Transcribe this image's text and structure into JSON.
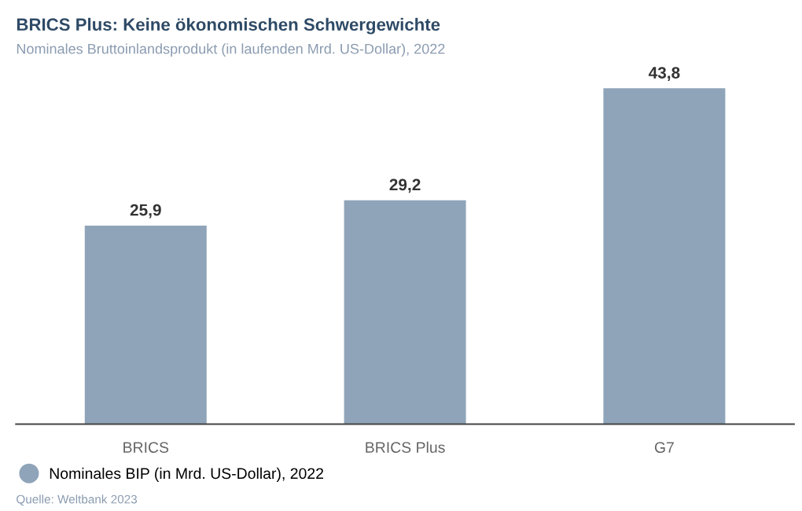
{
  "chart_data": {
    "type": "bar",
    "title": "BRICS Plus: Keine ökonomischen Schwergewichte",
    "subtitle": "Nominales Bruttoinlandsprodukt (in laufenden Mrd. US-Dollar), 2022",
    "categories": [
      "BRICS",
      "BRICS Plus",
      "G7"
    ],
    "series": [
      {
        "name": "Nominales BIP (in Mrd. US-Dollar), 2022",
        "color": "#8fa4b9",
        "values": [
          25.9,
          29.2,
          43.8
        ],
        "value_labels": [
          "25,9",
          "29,2",
          "43,8"
        ]
      }
    ],
    "legend": "bottom left",
    "grid": false,
    "tick_labels": "x",
    "annotations": [
      "Quelle: Weltbank 2023"
    ]
  }
}
